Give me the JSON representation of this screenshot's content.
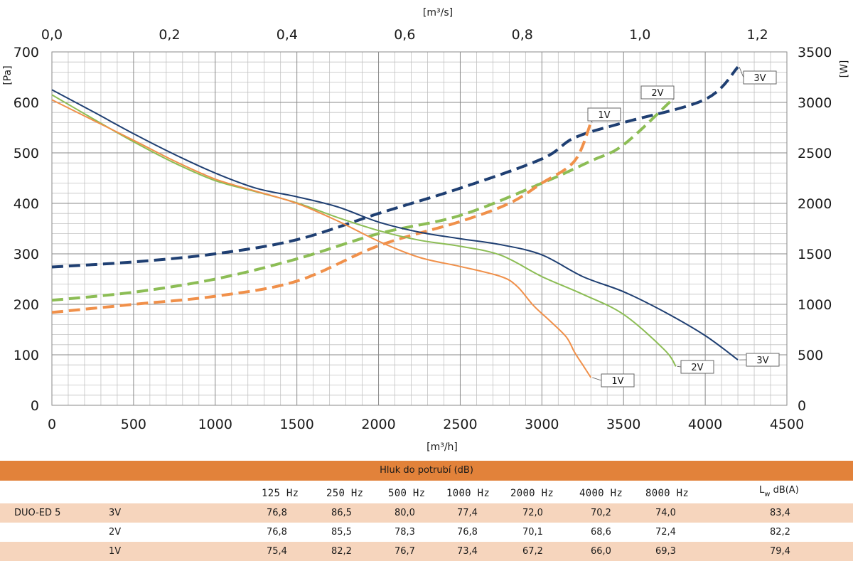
{
  "chart_data": {
    "type": "line",
    "x_axis_bottom": {
      "label": "[m³/h]",
      "range": [
        0,
        4500
      ],
      "ticks": [
        "0",
        "500",
        "1000",
        "1500",
        "2000",
        "2500",
        "3000",
        "3500",
        "4000",
        "4500"
      ]
    },
    "x_axis_top": {
      "label": "[m³/s]",
      "range": [
        0,
        1.25
      ],
      "ticks": [
        "0,0",
        "0,2",
        "0,4",
        "0,6",
        "0,8",
        "1,0",
        "1,2"
      ]
    },
    "y_axis_left": {
      "label": "[Pa]",
      "range": [
        0,
        700
      ],
      "ticks": [
        "0",
        "100",
        "200",
        "300",
        "400",
        "500",
        "600",
        "700"
      ]
    },
    "y_axis_right": {
      "label": "[W]",
      "range": [
        0,
        3500
      ],
      "ticks": [
        "0",
        "500",
        "1000",
        "1500",
        "2000",
        "2500",
        "3000",
        "3500"
      ]
    },
    "grid": true,
    "colors": {
      "3V": "#1f3f72",
      "2V": "#8cbd55",
      "1V": "#f0904a"
    },
    "pressure_series": [
      {
        "name": "3V",
        "x": [
          0,
          250,
          500,
          750,
          1000,
          1250,
          1500,
          1750,
          2000,
          2250,
          2500,
          2750,
          3000,
          3250,
          3500,
          3750,
          4000,
          4200
        ],
        "y": [
          625,
          582,
          538,
          497,
          460,
          430,
          413,
          393,
          363,
          343,
          330,
          318,
          298,
          255,
          225,
          185,
          138,
          90
        ]
      },
      {
        "name": "2V",
        "x": [
          0,
          250,
          500,
          750,
          1000,
          1250,
          1500,
          1750,
          2000,
          2250,
          2500,
          2750,
          3000,
          3250,
          3500,
          3750,
          3820
        ],
        "y": [
          615,
          568,
          522,
          480,
          445,
          423,
          401,
          372,
          346,
          327,
          315,
          297,
          255,
          220,
          180,
          110,
          77
        ]
      },
      {
        "name": "1V",
        "x": [
          0,
          250,
          500,
          750,
          1000,
          1250,
          1500,
          1750,
          2000,
          2250,
          2500,
          2750,
          2850,
          2950,
          3050,
          3150,
          3200,
          3250,
          3300
        ],
        "y": [
          605,
          565,
          525,
          484,
          448,
          424,
          400,
          365,
          325,
          293,
          275,
          255,
          235,
          197,
          167,
          135,
          105,
          80,
          55
        ]
      }
    ],
    "power_series": [
      {
        "name": "3V",
        "x": [
          0,
          500,
          1000,
          1500,
          2000,
          2500,
          3000,
          3200,
          3500,
          4000,
          4200
        ],
        "y": [
          1370,
          1420,
          1500,
          1640,
          1900,
          2150,
          2440,
          2650,
          2800,
          3030,
          3350
        ]
      },
      {
        "name": "2V",
        "x": [
          0,
          500,
          1000,
          1500,
          2000,
          2500,
          3000,
          3300,
          3500,
          3800
        ],
        "y": [
          1040,
          1120,
          1250,
          1450,
          1700,
          1880,
          2200,
          2420,
          2580,
          3030
        ]
      },
      {
        "name": "1V",
        "x": [
          0,
          500,
          1000,
          1500,
          2000,
          2500,
          2800,
          3000,
          3200,
          3300
        ],
        "y": [
          920,
          1000,
          1080,
          1230,
          1580,
          1820,
          2000,
          2200,
          2420,
          2800
        ]
      }
    ],
    "curve_tags": {
      "pressure": [
        "3V",
        "2V",
        "1V"
      ],
      "power": [
        "3V",
        "2V",
        "1V"
      ]
    }
  },
  "noise_table": {
    "title": "Hluk do potrubí (dB)",
    "bands": [
      "125 Hz",
      "250 Hz",
      "500 Hz",
      "1000 Hz",
      "2000 Hz",
      "4000 Hz",
      "8000 Hz"
    ],
    "total_header": {
      "base": "L",
      "subscript": "w",
      "suffix": " dB(A)"
    },
    "model": "DUO-ED 5",
    "rows": [
      {
        "speed": "3V",
        "values": [
          "76,8",
          "86,5",
          "80,0",
          "77,4",
          "72,0",
          "70,2",
          "74,0"
        ],
        "total": "83,4"
      },
      {
        "speed": "2V",
        "values": [
          "76,8",
          "85,5",
          "78,3",
          "76,8",
          "70,1",
          "68,6",
          "72,4"
        ],
        "total": "82,2"
      },
      {
        "speed": "1V",
        "values": [
          "75,4",
          "82,2",
          "76,7",
          "73,4",
          "67,2",
          "66,0",
          "69,3"
        ],
        "total": "79,4"
      }
    ]
  }
}
